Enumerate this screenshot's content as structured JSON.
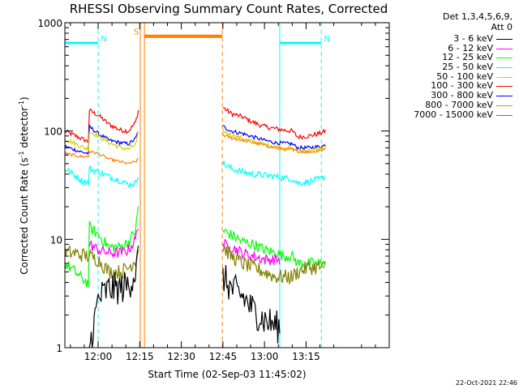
{
  "chart_data": {
    "type": "line",
    "title": "RHESSI Observing Summary Count Rates, Corrected",
    "xlabel": "Start Time (02-Sep-03 11:45:02)",
    "ylabel_main": "Corrected Count Rate (s",
    "ylabel_sup1": "-1",
    "ylabel_mid": " detector",
    "ylabel_sup2": "-1",
    "ylabel_end": ")",
    "y_scale": "log",
    "ylim": [
      1,
      1000
    ],
    "xlim_min": [
      -12,
      105
    ],
    "x_ticks": [
      {
        "value": 0,
        "label": "12:00"
      },
      {
        "value": 15,
        "label": "12:15"
      },
      {
        "value": 30,
        "label": "12:30"
      },
      {
        "value": 45,
        "label": "12:45"
      },
      {
        "value": 60,
        "label": "13:00"
      },
      {
        "value": 75,
        "label": "13:15"
      }
    ],
    "y_ticks": [
      {
        "value": 1,
        "label": "1"
      },
      {
        "value": 10,
        "label": "10"
      },
      {
        "value": 100,
        "label": "100"
      },
      {
        "value": 1000,
        "label": "1000"
      }
    ],
    "legend": {
      "header1": "Det 1,3,4,5,6,9,",
      "header2": "Att 0",
      "entries": [
        {
          "label": "3 - 6 keV",
          "color": "#000000"
        },
        {
          "label": "6 - 12 keV",
          "color": "#ff00ff"
        },
        {
          "label": "12 - 25 keV",
          "color": "#00ff00"
        },
        {
          "label": "25 - 50 keV",
          "color": "#00ffff"
        },
        {
          "label": "50 - 100 keV",
          "color": "#d8d000"
        },
        {
          "label": "100 - 300 keV",
          "color": "#ff0000"
        },
        {
          "label": "300 - 800 keV",
          "color": "#0000ff"
        },
        {
          "label": "800 - 7000 keV",
          "color": "#ff8000"
        },
        {
          "label": "7000 - 15000 keV",
          "color": "#808000"
        }
      ]
    },
    "annotations": [
      {
        "label": "N",
        "color": "#00ffff",
        "x_start": -12,
        "x_end": 0,
        "y_value": 650,
        "dashed_at": 0
      },
      {
        "label": "N",
        "color": "#00ffff",
        "x_start": 65.5,
        "x_end": 80.5,
        "y_value": 650,
        "dashed_at": 80.5
      },
      {
        "label": "S",
        "color": "#ff8000",
        "x_start": 16.7,
        "x_end": 44.8,
        "y_value": 750,
        "dashed_at": 44.8
      }
    ],
    "eclipse_lines": [
      {
        "x": 15.2,
        "color": "#ff8000"
      },
      {
        "x": 16.7,
        "color": "#ff8000"
      },
      {
        "x": 65.5,
        "color": "#00ffff"
      }
    ],
    "series": [
      {
        "name": "100 - 300 keV",
        "color": "#ff0000",
        "noise": 0.05,
        "segments": [
          [
            [
              -12,
              100
            ],
            [
              -9,
              92
            ],
            [
              -6,
              85
            ],
            [
              -3.5,
              80
            ],
            [
              -3.2,
              155
            ],
            [
              0,
              140
            ],
            [
              4,
              115
            ],
            [
              8,
              102
            ],
            [
              11,
              100
            ],
            [
              13.5,
              120
            ],
            [
              14.5,
              155
            ]
          ],
          [
            [
              45,
              165
            ],
            [
              48,
              145
            ],
            [
              52,
              135
            ],
            [
              56,
              120
            ],
            [
              60,
              110
            ],
            [
              64,
              105
            ],
            [
              67,
              102
            ],
            [
              70,
              100
            ],
            [
              72,
              88
            ],
            [
              76,
              90
            ],
            [
              80,
              95
            ],
            [
              82,
              100
            ]
          ]
        ]
      },
      {
        "name": "300 - 800 keV",
        "color": "#0000ff",
        "noise": 0.04,
        "segments": [
          [
            [
              -12,
              72
            ],
            [
              -9,
              68
            ],
            [
              -6,
              64
            ],
            [
              -3.5,
              62
            ],
            [
              -3.2,
              110
            ],
            [
              0,
              95
            ],
            [
              4,
              82
            ],
            [
              8,
              78
            ],
            [
              11,
              76
            ],
            [
              13.5,
              85
            ],
            [
              14.5,
              100
            ]
          ],
          [
            [
              45,
              110
            ],
            [
              48,
              100
            ],
            [
              52,
              95
            ],
            [
              56,
              88
            ],
            [
              60,
              82
            ],
            [
              64,
              78
            ],
            [
              67,
              77
            ],
            [
              70,
              76
            ],
            [
              72,
              70
            ],
            [
              76,
              70
            ],
            [
              80,
              72
            ],
            [
              82,
              74
            ]
          ]
        ]
      },
      {
        "name": "50 - 100 keV",
        "color": "#d8d000",
        "noise": 0.05,
        "segments": [
          [
            [
              -12,
              85
            ],
            [
              -9,
              78
            ],
            [
              -6,
              72
            ],
            [
              -3.5,
              68
            ],
            [
              -3.2,
              100
            ],
            [
              0,
              90
            ],
            [
              4,
              78
            ],
            [
              8,
              70
            ],
            [
              11,
              68
            ],
            [
              13.5,
              75
            ],
            [
              14.5,
              95
            ]
          ],
          [
            [
              45,
              100
            ],
            [
              48,
              92
            ],
            [
              52,
              85
            ],
            [
              56,
              80
            ],
            [
              60,
              75
            ],
            [
              64,
              72
            ],
            [
              67,
              70
            ],
            [
              70,
              68
            ],
            [
              72,
              66
            ],
            [
              76,
              66
            ],
            [
              80,
              68
            ],
            [
              82,
              70
            ]
          ]
        ]
      },
      {
        "name": "800 - 7000 keV",
        "color": "#ff8000",
        "noise": 0.03,
        "segments": [
          [
            [
              -12,
              62
            ],
            [
              -9,
              60
            ],
            [
              -6,
              58
            ],
            [
              -3.5,
              58
            ],
            [
              -3.2,
              65
            ],
            [
              0,
              62
            ],
            [
              4,
              55
            ],
            [
              8,
              52
            ],
            [
              11,
              50
            ],
            [
              13.5,
              52
            ],
            [
              14.5,
              55
            ]
          ],
          [
            [
              45,
              92
            ],
            [
              48,
              86
            ],
            [
              52,
              82
            ],
            [
              56,
              78
            ],
            [
              60,
              74
            ],
            [
              64,
              70
            ],
            [
              67,
              68
            ],
            [
              70,
              67
            ],
            [
              72,
              65
            ],
            [
              76,
              64
            ],
            [
              80,
              66
            ],
            [
              82,
              68
            ]
          ]
        ]
      },
      {
        "name": "25 - 50 keV",
        "color": "#00ffff",
        "noise": 0.07,
        "segments": [
          [
            [
              -12,
              45
            ],
            [
              -9,
              40
            ],
            [
              -6,
              35
            ],
            [
              -3.5,
              33
            ],
            [
              -3.2,
              45
            ],
            [
              0,
              42
            ],
            [
              4,
              38
            ],
            [
              8,
              35
            ],
            [
              11,
              32
            ],
            [
              13.5,
              33
            ],
            [
              14.5,
              40
            ]
          ],
          [
            [
              45,
              50
            ],
            [
              48,
              45
            ],
            [
              52,
              42
            ],
            [
              56,
              40
            ],
            [
              60,
              39
            ],
            [
              64,
              38
            ],
            [
              67,
              37
            ],
            [
              70,
              36
            ],
            [
              72,
              33
            ],
            [
              76,
              34
            ],
            [
              80,
              36
            ],
            [
              82,
              38
            ]
          ]
        ]
      },
      {
        "name": "12 - 25 keV",
        "color": "#00ff00",
        "noise": 0.12,
        "segments": [
          [
            [
              -12,
              6
            ],
            [
              -9,
              5.2
            ],
            [
              -6,
              4.4
            ],
            [
              -3.5,
              3.9
            ],
            [
              -3.2,
              13
            ],
            [
              0,
              11
            ],
            [
              4,
              8.5
            ],
            [
              8,
              8.5
            ],
            [
              11,
              9.5
            ],
            [
              13.5,
              12
            ],
            [
              14.5,
              20
            ]
          ],
          [
            [
              45,
              12
            ],
            [
              48,
              11
            ],
            [
              52,
              9.5
            ],
            [
              56,
              9
            ],
            [
              60,
              8
            ],
            [
              64,
              7.5
            ],
            [
              67,
              7
            ],
            [
              70,
              7
            ],
            [
              72,
              6
            ],
            [
              76,
              6
            ],
            [
              80,
              6
            ],
            [
              82,
              6
            ]
          ]
        ]
      },
      {
        "name": "6 - 12 keV",
        "color": "#ff00ff",
        "noise": 0.12,
        "segments": [
          [
            [
              -3.2,
              9
            ],
            [
              0,
              8
            ],
            [
              4,
              7.5
            ],
            [
              8,
              7.5
            ],
            [
              11,
              8
            ],
            [
              13.5,
              10
            ],
            [
              14.5,
              14
            ]
          ],
          [
            [
              45,
              9
            ],
            [
              48,
              8.5
            ],
            [
              52,
              7.5
            ],
            [
              56,
              7
            ],
            [
              60,
              6.5
            ],
            [
              64,
              6.5
            ],
            [
              65.5,
              6.5
            ]
          ]
        ]
      },
      {
        "name": "7000 - 15000 keV",
        "color": "#808000",
        "noise": 0.16,
        "segments": [
          [
            [
              -12,
              7.5
            ],
            [
              -9,
              7.5
            ],
            [
              -6,
              7.2
            ],
            [
              -3.5,
              7
            ],
            [
              0,
              6.5
            ],
            [
              4,
              5
            ],
            [
              8,
              5
            ],
            [
              11,
              5.5
            ],
            [
              13.5,
              6.5
            ],
            [
              14.5,
              8
            ]
          ],
          [
            [
              45,
              8.5
            ],
            [
              48,
              7
            ],
            [
              52,
              6
            ],
            [
              56,
              5.5
            ],
            [
              60,
              5
            ],
            [
              64,
              4.5
            ],
            [
              67,
              4.5
            ],
            [
              70,
              4.5
            ],
            [
              72,
              5
            ],
            [
              76,
              5.5
            ],
            [
              80,
              5.5
            ],
            [
              82,
              5.5
            ]
          ]
        ]
      },
      {
        "name": "3 - 6 keV",
        "color": "#000000",
        "noise": 0.35,
        "segments": [
          [
            [
              -3.2,
              1.0
            ],
            [
              -2,
              1.4
            ],
            [
              0,
              2.8
            ],
            [
              4,
              3.5
            ],
            [
              8,
              3.5
            ],
            [
              11,
              3.8
            ],
            [
              13.5,
              5
            ],
            [
              14.5,
              7
            ]
          ],
          [
            [
              45,
              4.5
            ],
            [
              48,
              3.5
            ],
            [
              52,
              3.0
            ],
            [
              56,
              2.2
            ],
            [
              60,
              1.8
            ],
            [
              64,
              1.6
            ],
            [
              65.5,
              1.5
            ]
          ]
        ]
      }
    ]
  },
  "footer": {
    "date": "22-Oct-2021 22:46"
  }
}
